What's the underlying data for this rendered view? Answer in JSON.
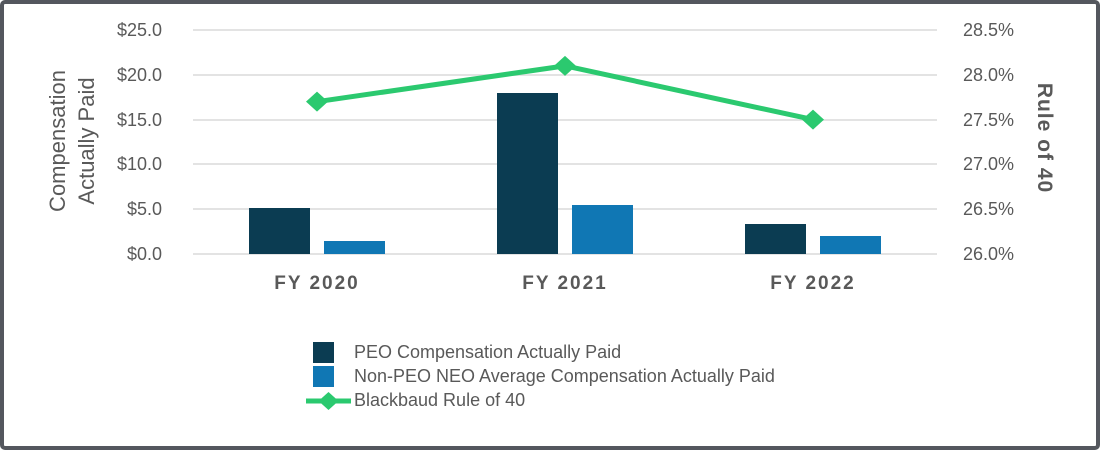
{
  "palette": {
    "frame_border": "#54575e",
    "grid": "#e3e3e3",
    "text": "#595959",
    "navy": "#0b3c52",
    "blue": "#1077b4",
    "green": "#2bc96f",
    "background": "#ffffff"
  },
  "chart_data": {
    "type": "combo",
    "categories": [
      "FY 2020",
      "FY 2021",
      "FY 2022"
    ],
    "series": [
      {
        "name": "PEO Compensation Actually Paid",
        "type": "bar",
        "axis": "left",
        "color": "#0b3c52",
        "values": [
          5.1,
          18.0,
          3.3
        ]
      },
      {
        "name": "Non-PEO NEO Average Compensation Actually Paid",
        "type": "bar",
        "axis": "left",
        "color": "#1077b4",
        "values": [
          1.5,
          5.5,
          2.0
        ]
      },
      {
        "name": "Blackbaud Rule of 40",
        "type": "line",
        "axis": "right",
        "color": "#2bc96f",
        "marker": "diamond",
        "values": [
          27.7,
          28.1,
          27.5
        ]
      }
    ],
    "left_axis": {
      "title_line1": "Compensation",
      "title_line2": "Actually Paid",
      "ticks": [
        "$25.0",
        "$20.0",
        "$15.0",
        "$10.0",
        "$5.0",
        "$0.0"
      ],
      "min": 0,
      "max": 25
    },
    "right_axis": {
      "title": "Rule of 40",
      "ticks": [
        "28.5%",
        "28.0%",
        "27.5%",
        "27.0%",
        "26.5%",
        "26.0%"
      ],
      "min": 26.0,
      "max": 28.5
    },
    "grid": "horizontal",
    "legend_position": "bottom-left"
  }
}
